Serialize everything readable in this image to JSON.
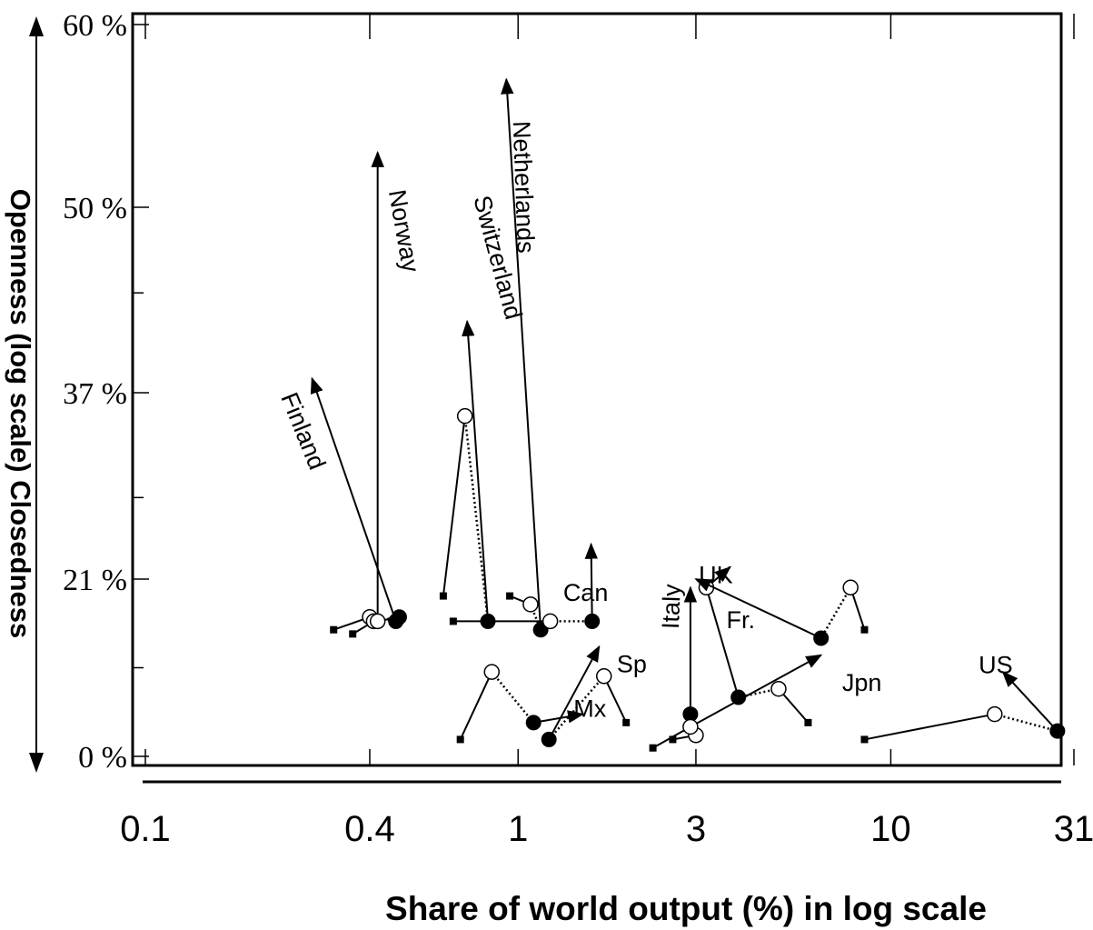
{
  "chart_data": {
    "type": "scatter",
    "xlabel": "Share of world output (%)  in log scale",
    "ylabel": "Openness  (log scale)  Closedness",
    "x_scale": "log",
    "y_scale": "log",
    "xlim": [
      0.1,
      31
    ],
    "ylim": [
      0,
      60
    ],
    "x_ticks": [
      {
        "value": 0.1,
        "label": "0.1"
      },
      {
        "value": 0.4,
        "label": "0.4"
      },
      {
        "value": 1,
        "label": "1"
      },
      {
        "value": 3,
        "label": "3"
      },
      {
        "value": 10,
        "label": "10"
      },
      {
        "value": 31,
        "label": "31"
      }
    ],
    "y_ticks": [
      {
        "value": 0,
        "label": "0 %"
      },
      {
        "value": 21,
        "label": "21 %"
      },
      {
        "value": 37,
        "label": "37 %"
      },
      {
        "value": 50,
        "label": "50 %"
      },
      {
        "value": 60,
        "label": "60 %"
      }
    ],
    "grid": false,
    "legend": "none",
    "countries": [
      {
        "label": "Finland",
        "path": [
          [
            0.32,
            15.0
          ],
          [
            0.4,
            16.5
          ],
          [
            0.47,
            16.0
          ],
          [
            0.28,
            38.0
          ]
        ]
      },
      {
        "label": "Norway",
        "path": [
          [
            0.36,
            14.5
          ],
          [
            0.41,
            16.0
          ],
          [
            0.48,
            16.5
          ],
          [
            0.42,
            16.0
          ],
          [
            0.42,
            53.0
          ]
        ]
      },
      {
        "label": "Switzerland",
        "path": [
          [
            0.63,
            19.0
          ],
          [
            0.72,
            35.0
          ],
          [
            0.83,
            16.0
          ],
          [
            0.73,
            42.0
          ]
        ]
      },
      {
        "label": "Netherlands",
        "path": [
          [
            0.95,
            19.0
          ],
          [
            1.08,
            18.0
          ],
          [
            1.15,
            15.0
          ],
          [
            0.93,
            57.0
          ]
        ]
      },
      {
        "label": "Can",
        "path": [
          [
            0.67,
            16.0
          ],
          [
            1.22,
            16.0
          ],
          [
            1.58,
            16.0
          ],
          [
            1.57,
            24.0
          ]
        ]
      },
      {
        "label": "Mx",
        "path": [
          [
            0.7,
            2.0
          ],
          [
            0.85,
            10.0
          ],
          [
            1.1,
            4.0
          ],
          [
            1.49,
            5.0
          ]
        ]
      },
      {
        "label": "Sp",
        "path": [
          [
            1.95,
            4.0
          ],
          [
            1.7,
            9.5
          ],
          [
            1.21,
            2.0
          ],
          [
            1.65,
            13.0
          ]
        ]
      },
      {
        "label": "Italy",
        "path": [
          [
            2.6,
            2.0
          ],
          [
            3.0,
            2.5
          ],
          [
            2.9,
            5.0
          ],
          [
            2.9,
            20.0
          ]
        ]
      },
      {
        "label": "Jpn",
        "path": [
          [
            2.3,
            1.0
          ],
          [
            2.9,
            3.5
          ],
          [
            6.5,
            12.0
          ]
        ]
      },
      {
        "label": "Fr.",
        "path": [
          [
            6.0,
            4.0
          ],
          [
            5.0,
            8.0
          ],
          [
            3.9,
            7.0
          ],
          [
            3.2,
            20.0
          ],
          [
            3.7,
            22.0
          ]
        ]
      },
      {
        "label": "UK",
        "path": [
          [
            8.5,
            15.0
          ],
          [
            7.8,
            20.0
          ],
          [
            6.5,
            14.0
          ],
          [
            3.0,
            21.0
          ]
        ]
      },
      {
        "label": "US",
        "path": [
          [
            8.5,
            2.0
          ],
          [
            19.0,
            5.0
          ],
          [
            28.0,
            3.0
          ],
          [
            20.0,
            10.0
          ]
        ]
      }
    ]
  }
}
